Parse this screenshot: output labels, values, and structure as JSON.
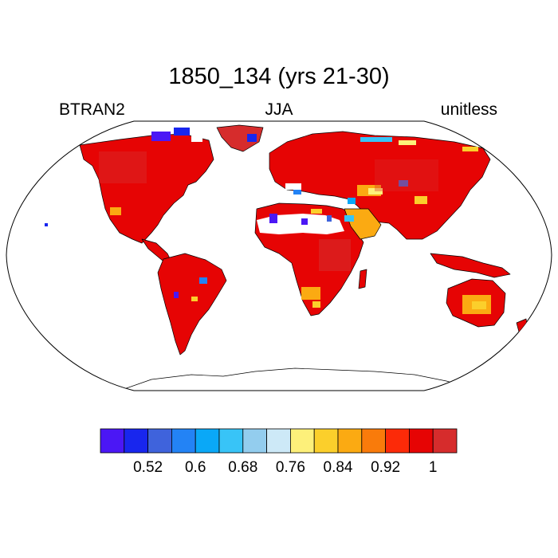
{
  "title": "1850_134 (yrs 21-30)",
  "left_label": "BTRAN2",
  "center_label": "JJA",
  "right_label": "unitless",
  "colorbar": {
    "colors": [
      "#4b17f5",
      "#1826ee",
      "#3f63dc",
      "#2383f5",
      "#0aa8f7",
      "#38c4f7",
      "#93cdee",
      "#cde9f7",
      "#fdf07a",
      "#fbcf2b",
      "#fbaa12",
      "#f97b0b",
      "#fc2a08",
      "#e60404",
      "#d62c2c"
    ],
    "tick_labels": [
      "0.52",
      "0.6",
      "0.68",
      "0.76",
      "0.84",
      "0.92",
      "1"
    ]
  },
  "chart_data": {
    "type": "heatmap",
    "variable": "BTRAN2",
    "season": "JJA",
    "units": "unitless",
    "color_levels": [
      0.48,
      0.52,
      0.56,
      0.6,
      0.64,
      0.68,
      0.72,
      0.76,
      0.8,
      0.84,
      0.88,
      0.92,
      0.96,
      1.0
    ],
    "dominant_value_land": 1.0,
    "low_value_regions": [
      "Sahara margins",
      "Arabian Peninsula",
      "Canadian Arctic",
      "Central Asia"
    ]
  }
}
